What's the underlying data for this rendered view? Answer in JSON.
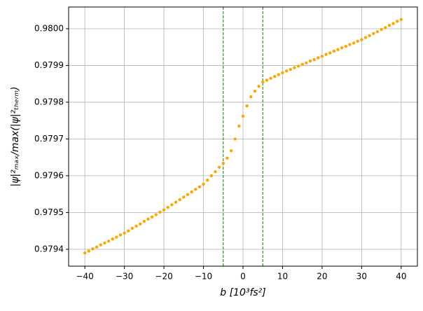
{
  "chart_data": {
    "type": "scatter",
    "xlabel": "b [10³fs²]",
    "ylabel": "|ψ|²ₘₐₓ/max(|ψ|²ₜₕₑᵣₘ)",
    "color": "#ffa500",
    "x": [
      -40,
      -39,
      -38,
      -37,
      -36,
      -35,
      -34,
      -33,
      -32,
      -31,
      -30,
      -29,
      -28,
      -27,
      -26,
      -25,
      -24,
      -23,
      -22,
      -21,
      -20,
      -19,
      -18,
      -17,
      -16,
      -15,
      -14,
      -13,
      -12,
      -11,
      -10,
      -9,
      -8,
      -7,
      -6,
      -5,
      -4,
      -3,
      -2,
      -1,
      0,
      1,
      2,
      3,
      4,
      5,
      6,
      7,
      8,
      9,
      10,
      11,
      12,
      13,
      14,
      15,
      16,
      17,
      18,
      19,
      20,
      21,
      22,
      23,
      24,
      25,
      26,
      27,
      28,
      29,
      30,
      31,
      32,
      33,
      34,
      35,
      36,
      37,
      38,
      39,
      40
    ],
    "values": [
      0.97939,
      0.979395,
      0.979401,
      0.979406,
      0.979412,
      0.979417,
      0.979422,
      0.979428,
      0.979433,
      0.979439,
      0.979444,
      0.97945,
      0.979457,
      0.979463,
      0.979469,
      0.979476,
      0.979482,
      0.979488,
      0.979494,
      0.979501,
      0.979507,
      0.979514,
      0.979521,
      0.979528,
      0.979535,
      0.979542,
      0.979549,
      0.979556,
      0.979563,
      0.97957,
      0.979577,
      0.979588,
      0.9796,
      0.979611,
      0.979623,
      0.979634,
      0.979648,
      0.979668,
      0.9797,
      0.979735,
      0.979762,
      0.97979,
      0.979815,
      0.97983,
      0.979843,
      0.979855,
      0.97986,
      0.979865,
      0.97987,
      0.979875,
      0.97988,
      0.979885,
      0.979889,
      0.979894,
      0.979898,
      0.979903,
      0.979907,
      0.979912,
      0.979916,
      0.979921,
      0.979925,
      0.97993,
      0.979934,
      0.979939,
      0.979943,
      0.979948,
      0.979952,
      0.979957,
      0.979961,
      0.979966,
      0.97997,
      0.979976,
      0.979981,
      0.979987,
      0.979992,
      0.979998,
      0.980003,
      0.980009,
      0.980014,
      0.98002,
      0.980025
    ],
    "xlim": [
      -44.1,
      44.1
    ],
    "ylim": [
      0.979354,
      0.980059
    ],
    "xticks": [
      {
        "value": -40,
        "label": "−40"
      },
      {
        "value": -30,
        "label": "−30"
      },
      {
        "value": -20,
        "label": "−20"
      },
      {
        "value": -10,
        "label": "−10"
      },
      0,
      10,
      20,
      30,
      40
    ],
    "yticks": [
      0.9794,
      0.9795,
      0.9796,
      0.9797,
      0.9798,
      0.9799,
      {
        "value": 0.98,
        "label": "0.9800"
      }
    ],
    "grid": true,
    "vlines": [
      -5,
      5
    ],
    "vline_color": "#008000"
  }
}
